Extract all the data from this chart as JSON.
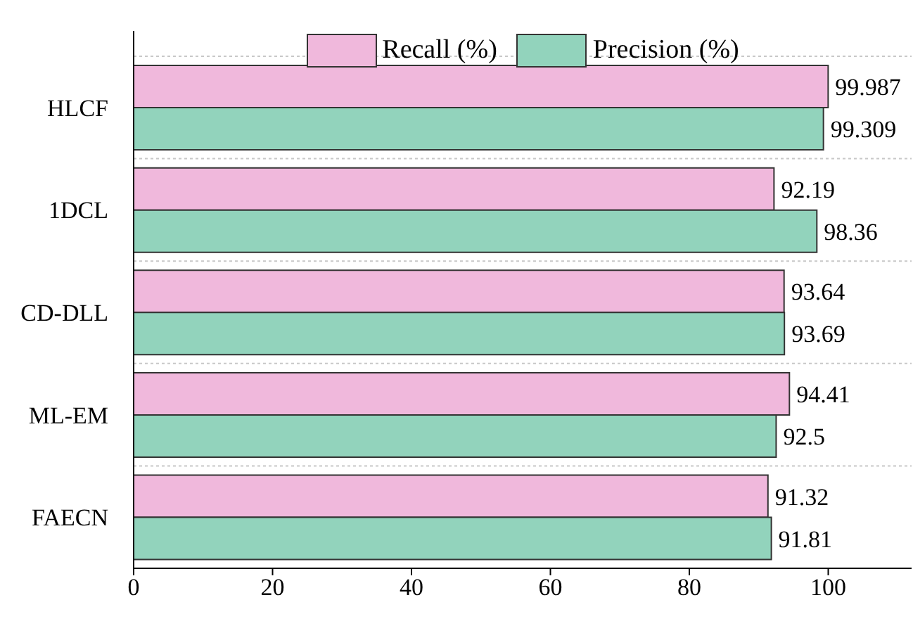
{
  "chart_data": {
    "type": "bar",
    "orientation": "horizontal",
    "categories": [
      "HLCF",
      "1DCL",
      "CD-DLL",
      "ML-EM",
      "FAECN"
    ],
    "series": [
      {
        "name": "Recall (%)",
        "color": "#f0b8dc",
        "values": [
          99.987,
          92.19,
          93.64,
          94.41,
          91.32
        ]
      },
      {
        "name": "Precision (%)",
        "color": "#92d3bc",
        "values": [
          99.309,
          98.36,
          93.69,
          92.5,
          91.81
        ]
      }
    ],
    "xlim": [
      0,
      112
    ],
    "xticks": [
      0,
      20,
      40,
      60,
      80,
      100
    ],
    "data_labels": true,
    "grid": "y",
    "legend": "top"
  }
}
